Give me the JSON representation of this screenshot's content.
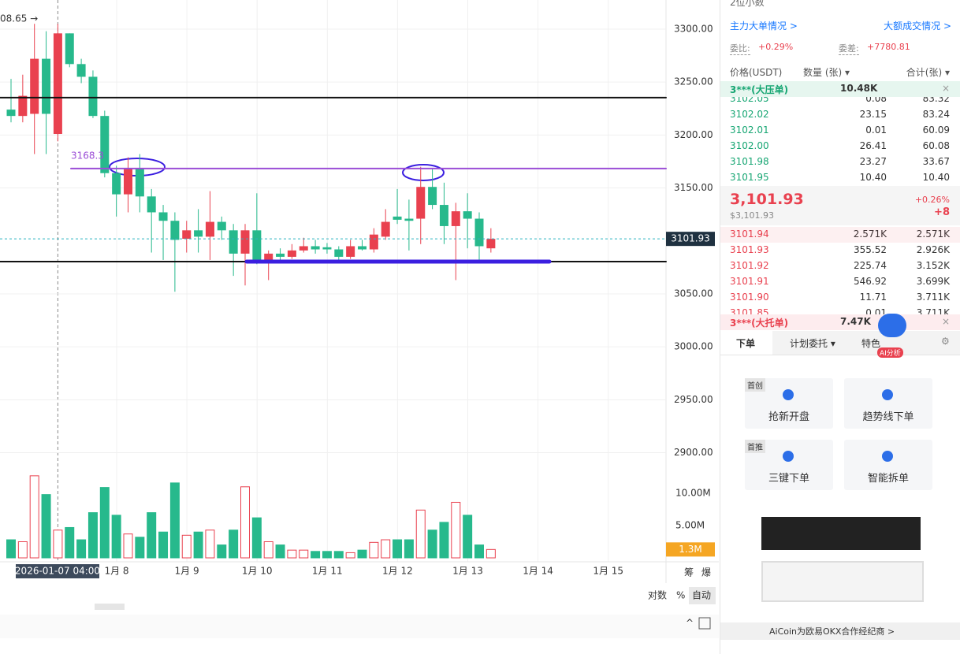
{
  "chart": {
    "type": "candlestick",
    "top_label": "08.65 →",
    "ylim": [
      2888.5,
      3327.5
    ],
    "yticks": [
      {
        "value": 3300,
        "label": "3300.00"
      },
      {
        "value": 3250,
        "label": "3250.00"
      },
      {
        "value": 3200,
        "label": "3200.00"
      },
      {
        "value": 3150,
        "label": "3150.00"
      },
      {
        "value": 3050,
        "label": "3050.00"
      },
      {
        "value": 3000,
        "label": "3000.00"
      },
      {
        "value": 2950,
        "label": "2950.00"
      },
      {
        "value": 2900,
        "label": "2900.00"
      }
    ],
    "open": [
      3224,
      3218,
      3220,
      3272,
      3201,
      3296,
      3267,
      3255,
      3218,
      3164,
      3144,
      3169,
      3142,
      3127,
      3119,
      3102,
      3110,
      3104,
      3118,
      3110,
      3088,
      3110,
      3082,
      3088,
      3085,
      3091,
      3095,
      3094,
      3092,
      3085,
      3095,
      3092,
      3104,
      3123,
      3121,
      3121,
      3151,
      3134,
      3114,
      3128,
      3121,
      3093
    ],
    "high": [
      3253,
      3257,
      3305,
      3298,
      3305,
      3296,
      3272,
      3261,
      3223,
      3171,
      3179,
      3182,
      3149,
      3134,
      3127,
      3119,
      3130,
      3147,
      3123,
      3116,
      3116,
      3145,
      3091,
      3093,
      3097,
      3103,
      3101,
      3098,
      3095,
      3101,
      3101,
      3112,
      3130,
      3149,
      3139,
      3170,
      3169,
      3155,
      3136,
      3145,
      3127,
      3112
    ],
    "low": [
      3212,
      3212,
      3182,
      3182,
      3194,
      3264,
      3249,
      3216,
      3160,
      3123,
      3127,
      3127,
      3089,
      3082,
      3052,
      3089,
      3089,
      3082,
      3101,
      3067,
      3058,
      3078,
      3063,
      3082,
      3083,
      3089,
      3088,
      3088,
      3082,
      3083,
      3091,
      3089,
      3101,
      3116,
      3091,
      3097,
      3130,
      3097,
      3063,
      3093,
      3082,
      3089
    ],
    "close": [
      3218,
      3237,
      3272,
      3220,
      3296,
      3267,
      3255,
      3218,
      3164,
      3144,
      3169,
      3142,
      3127,
      3119,
      3101,
      3110,
      3104,
      3118,
      3110,
      3088,
      3110,
      3082,
      3088,
      3085,
      3091,
      3095,
      3092,
      3092,
      3085,
      3095,
      3092,
      3106,
      3118,
      3120,
      3119,
      3151,
      3134,
      3114,
      3128,
      3121,
      3095,
      3101.93
    ],
    "volume": [
      2.8,
      2.5,
      12.7,
      9.8,
      4.3,
      4.7,
      2.8,
      7.0,
      10.9,
      6.6,
      3.7,
      3.2,
      7.0,
      4.0,
      11.6,
      3.5,
      4.0,
      4.3,
      2.0,
      4.3,
      11.0,
      6.2,
      2.5,
      2.0,
      1.2,
      1.2,
      1.0,
      1.0,
      1.0,
      0.8,
      1.2,
      2.4,
      2.8,
      2.8,
      2.8,
      7.4,
      4.3,
      5.5,
      8.6,
      6.6,
      2.0,
      1.3
    ],
    "volume_ylim": [
      0,
      13.17
    ],
    "volume_yticks": [
      {
        "value": 10,
        "label": "10.00M"
      },
      {
        "value": 5,
        "label": "5.00M"
      }
    ],
    "last_volume": {
      "value": 1.3,
      "label": "1.3M"
    },
    "last_price": {
      "value": 3101.93,
      "label": "3101.93"
    },
    "lines": [
      {
        "value": 3235.3,
        "color": "#111111"
      },
      {
        "value": 3080.5,
        "color": "#111111"
      },
      {
        "value": 3168.35,
        "color": "#9b4dd6",
        "label": "3168.3"
      },
      {
        "value": 3080.5,
        "color": "#3b1fe0"
      }
    ],
    "crosshair_label": "2026-01-07 04:00",
    "x_labels": [
      "1月 8",
      "1月 9",
      "1月 10",
      "1月 11",
      "1月 12",
      "1月 13",
      "1月 14",
      "1月 15"
    ],
    "up_color": "#e9414f",
    "down_color": "#27b98c",
    "axis_buttons": [
      "筹",
      "爆"
    ],
    "scale_buttons": [
      "对数",
      "%",
      "自动"
    ]
  },
  "order_book": {
    "precision": "2位小数",
    "links": [
      "主力大单情况 >",
      "大额成交情况 >"
    ],
    "ratio_label": "委比:",
    "ratio": "+0.29%",
    "diff_label": "委差:",
    "diff": "+7780.81",
    "columns": [
      "价格(USDT)",
      "数量 (张) ▾",
      "合计(张) ▾"
    ],
    "big_ask": [
      "3***(大压单)",
      "10.48K"
    ],
    "asks": [
      [
        "3102.05",
        "0.08",
        "83.32"
      ],
      [
        "3102.02",
        "23.15",
        "83.24"
      ],
      [
        "3102.01",
        "0.01",
        "60.09"
      ],
      [
        "3102.00",
        "26.41",
        "60.08"
      ],
      [
        "3101.98",
        "23.27",
        "33.67"
      ],
      [
        "3101.95",
        "10.40",
        "10.40"
      ]
    ],
    "price": "3,101.93",
    "price_usd": "$3,101.93",
    "change_pct": "+0.26%",
    "change": "+8",
    "bids": [
      [
        "3101.94",
        "2.571K",
        "2.571K"
      ],
      [
        "3101.93",
        "355.52",
        "2.926K"
      ],
      [
        "3101.92",
        "225.74",
        "3.152K"
      ],
      [
        "3101.91",
        "546.92",
        "3.699K"
      ],
      [
        "3101.90",
        "11.71",
        "3.711K"
      ],
      [
        "3101.85",
        "0.01",
        "3.711K"
      ]
    ],
    "big_bid": [
      "3***(大托单)",
      "7.47K"
    ]
  },
  "trade_panel": {
    "tabs": [
      "下单",
      "计划委托 ▾",
      "特色"
    ],
    "ai_badge": "AI分析",
    "cards": [
      {
        "tag": "首创",
        "label": "抢新开盘"
      },
      {
        "label": "趋势线下单"
      },
      {
        "tag": "首推",
        "label": "三键下单"
      },
      {
        "label": "智能拆单"
      }
    ],
    "footer": "AiCoin为欧易OKX合作经纪商 >"
  }
}
